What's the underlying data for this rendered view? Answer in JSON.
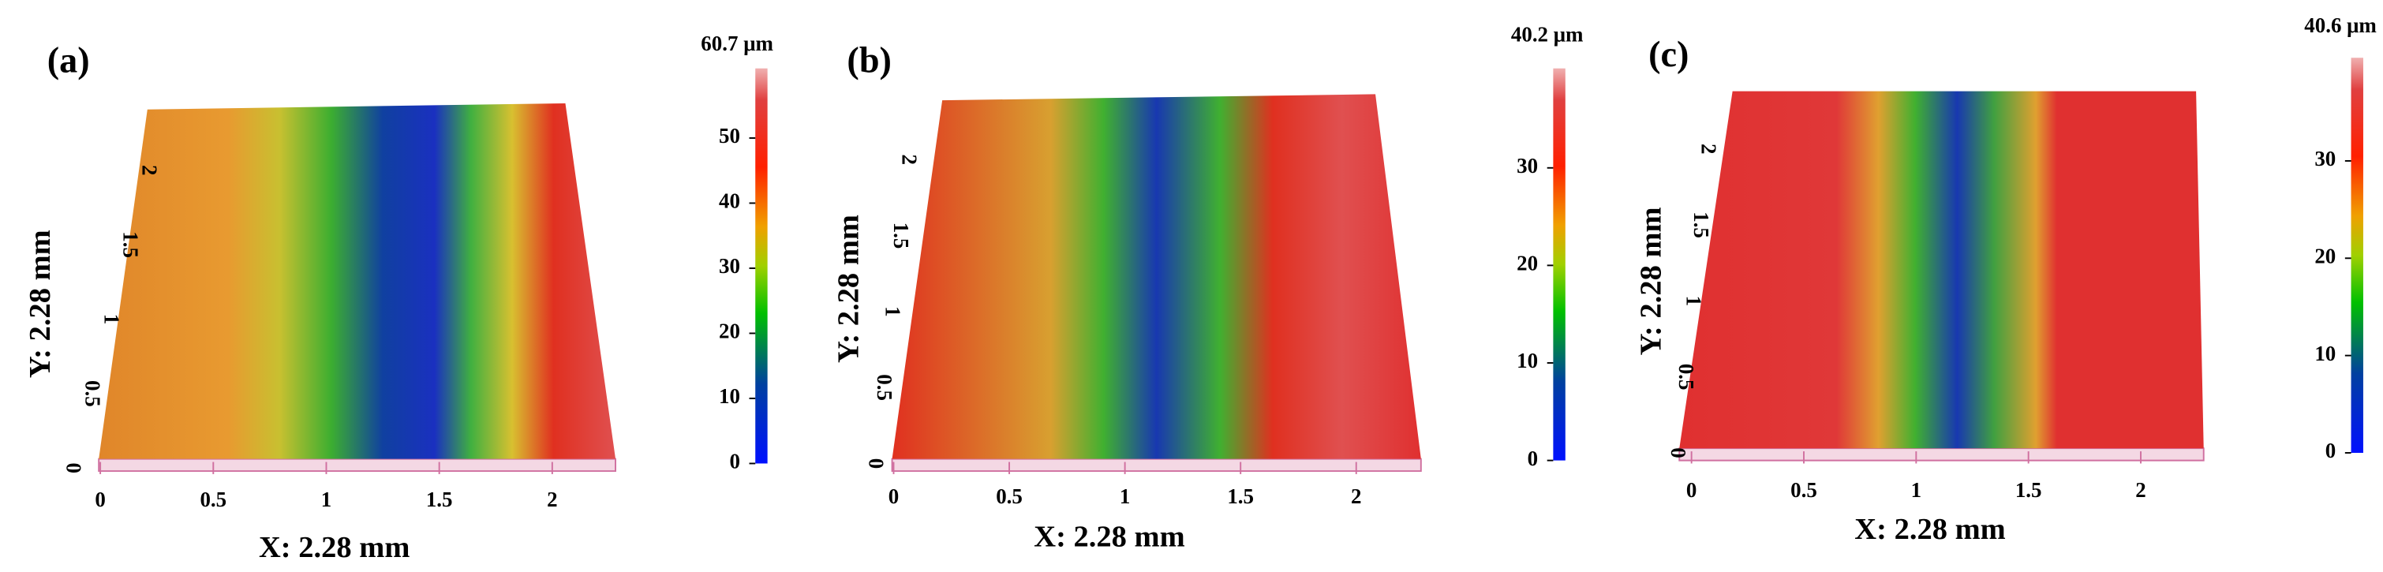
{
  "panels": [
    {
      "label": "(a)",
      "colorbar": {
        "max": 60.7,
        "max_label": "60.7 μm",
        "ticks": [
          0,
          10,
          20,
          30,
          40,
          50
        ]
      },
      "x_axis": {
        "label": "X: 2.28 mm",
        "range": [
          0,
          2.28
        ],
        "ticks": [
          0,
          0.5,
          1,
          1.5,
          2
        ]
      },
      "y_axis": {
        "label": "Y: 2.28 mm",
        "range": [
          0,
          2.28
        ],
        "ticks": [
          0,
          0.5,
          1,
          1.5,
          2
        ]
      }
    },
    {
      "label": "(b)",
      "colorbar": {
        "max": 40.2,
        "max_label": "40.2 μm",
        "ticks": [
          0,
          10,
          20,
          30
        ]
      },
      "x_axis": {
        "label": "X: 2.28 mm",
        "range": [
          0,
          2.28
        ],
        "ticks": [
          0,
          0.5,
          1,
          1.5,
          2
        ]
      },
      "y_axis": {
        "label": "Y: 2.28 mm",
        "range": [
          0,
          2.28
        ],
        "ticks": [
          0,
          0.5,
          1,
          1.5,
          2
        ]
      }
    },
    {
      "label": "(c)",
      "colorbar": {
        "max": 40.6,
        "max_label": "40.6 μm",
        "ticks": [
          0,
          10,
          20,
          30
        ]
      },
      "x_axis": {
        "label": "X: 2.28 mm",
        "range": [
          0,
          2.28
        ],
        "ticks": [
          0,
          0.5,
          1,
          1.5,
          2
        ]
      },
      "y_axis": {
        "label": "Y: 2.28 mm",
        "range": [
          0,
          2.28
        ],
        "ticks": [
          0,
          0.5,
          1,
          1.5,
          2
        ]
      }
    }
  ]
}
